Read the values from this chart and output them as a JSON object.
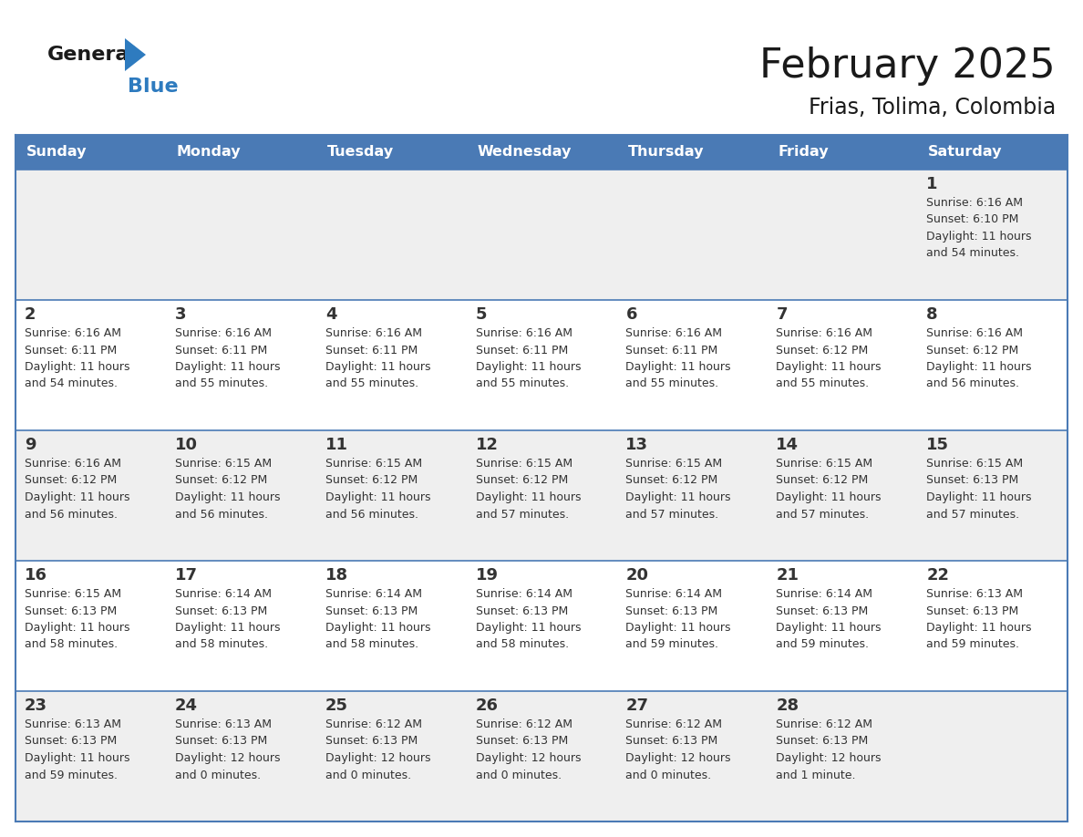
{
  "title": "February 2025",
  "subtitle": "Frias, Tolima, Colombia",
  "header_bg_color": "#4a7ab5",
  "header_text_color": "#ffffff",
  "day_names": [
    "Sunday",
    "Monday",
    "Tuesday",
    "Wednesday",
    "Thursday",
    "Friday",
    "Saturday"
  ],
  "odd_row_bg": "#efefef",
  "even_row_bg": "#ffffff",
  "border_color": "#4a7ab5",
  "text_color": "#333333",
  "num_color": "#333333",
  "calendar": [
    [
      {
        "day": "",
        "sunrise": "",
        "sunset": "",
        "daylight": ""
      },
      {
        "day": "",
        "sunrise": "",
        "sunset": "",
        "daylight": ""
      },
      {
        "day": "",
        "sunrise": "",
        "sunset": "",
        "daylight": ""
      },
      {
        "day": "",
        "sunrise": "",
        "sunset": "",
        "daylight": ""
      },
      {
        "day": "",
        "sunrise": "",
        "sunset": "",
        "daylight": ""
      },
      {
        "day": "",
        "sunrise": "",
        "sunset": "",
        "daylight": ""
      },
      {
        "day": "1",
        "sunrise": "Sunrise: 6:16 AM",
        "sunset": "Sunset: 6:10 PM",
        "daylight": "Daylight: 11 hours\nand 54 minutes."
      }
    ],
    [
      {
        "day": "2",
        "sunrise": "Sunrise: 6:16 AM",
        "sunset": "Sunset: 6:11 PM",
        "daylight": "Daylight: 11 hours\nand 54 minutes."
      },
      {
        "day": "3",
        "sunrise": "Sunrise: 6:16 AM",
        "sunset": "Sunset: 6:11 PM",
        "daylight": "Daylight: 11 hours\nand 55 minutes."
      },
      {
        "day": "4",
        "sunrise": "Sunrise: 6:16 AM",
        "sunset": "Sunset: 6:11 PM",
        "daylight": "Daylight: 11 hours\nand 55 minutes."
      },
      {
        "day": "5",
        "sunrise": "Sunrise: 6:16 AM",
        "sunset": "Sunset: 6:11 PM",
        "daylight": "Daylight: 11 hours\nand 55 minutes."
      },
      {
        "day": "6",
        "sunrise": "Sunrise: 6:16 AM",
        "sunset": "Sunset: 6:11 PM",
        "daylight": "Daylight: 11 hours\nand 55 minutes."
      },
      {
        "day": "7",
        "sunrise": "Sunrise: 6:16 AM",
        "sunset": "Sunset: 6:12 PM",
        "daylight": "Daylight: 11 hours\nand 55 minutes."
      },
      {
        "day": "8",
        "sunrise": "Sunrise: 6:16 AM",
        "sunset": "Sunset: 6:12 PM",
        "daylight": "Daylight: 11 hours\nand 56 minutes."
      }
    ],
    [
      {
        "day": "9",
        "sunrise": "Sunrise: 6:16 AM",
        "sunset": "Sunset: 6:12 PM",
        "daylight": "Daylight: 11 hours\nand 56 minutes."
      },
      {
        "day": "10",
        "sunrise": "Sunrise: 6:15 AM",
        "sunset": "Sunset: 6:12 PM",
        "daylight": "Daylight: 11 hours\nand 56 minutes."
      },
      {
        "day": "11",
        "sunrise": "Sunrise: 6:15 AM",
        "sunset": "Sunset: 6:12 PM",
        "daylight": "Daylight: 11 hours\nand 56 minutes."
      },
      {
        "day": "12",
        "sunrise": "Sunrise: 6:15 AM",
        "sunset": "Sunset: 6:12 PM",
        "daylight": "Daylight: 11 hours\nand 57 minutes."
      },
      {
        "day": "13",
        "sunrise": "Sunrise: 6:15 AM",
        "sunset": "Sunset: 6:12 PM",
        "daylight": "Daylight: 11 hours\nand 57 minutes."
      },
      {
        "day": "14",
        "sunrise": "Sunrise: 6:15 AM",
        "sunset": "Sunset: 6:12 PM",
        "daylight": "Daylight: 11 hours\nand 57 minutes."
      },
      {
        "day": "15",
        "sunrise": "Sunrise: 6:15 AM",
        "sunset": "Sunset: 6:13 PM",
        "daylight": "Daylight: 11 hours\nand 57 minutes."
      }
    ],
    [
      {
        "day": "16",
        "sunrise": "Sunrise: 6:15 AM",
        "sunset": "Sunset: 6:13 PM",
        "daylight": "Daylight: 11 hours\nand 58 minutes."
      },
      {
        "day": "17",
        "sunrise": "Sunrise: 6:14 AM",
        "sunset": "Sunset: 6:13 PM",
        "daylight": "Daylight: 11 hours\nand 58 minutes."
      },
      {
        "day": "18",
        "sunrise": "Sunrise: 6:14 AM",
        "sunset": "Sunset: 6:13 PM",
        "daylight": "Daylight: 11 hours\nand 58 minutes."
      },
      {
        "day": "19",
        "sunrise": "Sunrise: 6:14 AM",
        "sunset": "Sunset: 6:13 PM",
        "daylight": "Daylight: 11 hours\nand 58 minutes."
      },
      {
        "day": "20",
        "sunrise": "Sunrise: 6:14 AM",
        "sunset": "Sunset: 6:13 PM",
        "daylight": "Daylight: 11 hours\nand 59 minutes."
      },
      {
        "day": "21",
        "sunrise": "Sunrise: 6:14 AM",
        "sunset": "Sunset: 6:13 PM",
        "daylight": "Daylight: 11 hours\nand 59 minutes."
      },
      {
        "day": "22",
        "sunrise": "Sunrise: 6:13 AM",
        "sunset": "Sunset: 6:13 PM",
        "daylight": "Daylight: 11 hours\nand 59 minutes."
      }
    ],
    [
      {
        "day": "23",
        "sunrise": "Sunrise: 6:13 AM",
        "sunset": "Sunset: 6:13 PM",
        "daylight": "Daylight: 11 hours\nand 59 minutes."
      },
      {
        "day": "24",
        "sunrise": "Sunrise: 6:13 AM",
        "sunset": "Sunset: 6:13 PM",
        "daylight": "Daylight: 12 hours\nand 0 minutes."
      },
      {
        "day": "25",
        "sunrise": "Sunrise: 6:12 AM",
        "sunset": "Sunset: 6:13 PM",
        "daylight": "Daylight: 12 hours\nand 0 minutes."
      },
      {
        "day": "26",
        "sunrise": "Sunrise: 6:12 AM",
        "sunset": "Sunset: 6:13 PM",
        "daylight": "Daylight: 12 hours\nand 0 minutes."
      },
      {
        "day": "27",
        "sunrise": "Sunrise: 6:12 AM",
        "sunset": "Sunset: 6:13 PM",
        "daylight": "Daylight: 12 hours\nand 0 minutes."
      },
      {
        "day": "28",
        "sunrise": "Sunrise: 6:12 AM",
        "sunset": "Sunset: 6:13 PM",
        "daylight": "Daylight: 12 hours\nand 1 minute."
      },
      {
        "day": "",
        "sunrise": "",
        "sunset": "",
        "daylight": ""
      }
    ]
  ],
  "logo_general_color": "#1a1a1a",
  "logo_blue_color": "#2e7bbf",
  "logo_triangle_color": "#2e7bbf",
  "fig_width": 11.88,
  "fig_height": 9.18,
  "fig_dpi": 100
}
